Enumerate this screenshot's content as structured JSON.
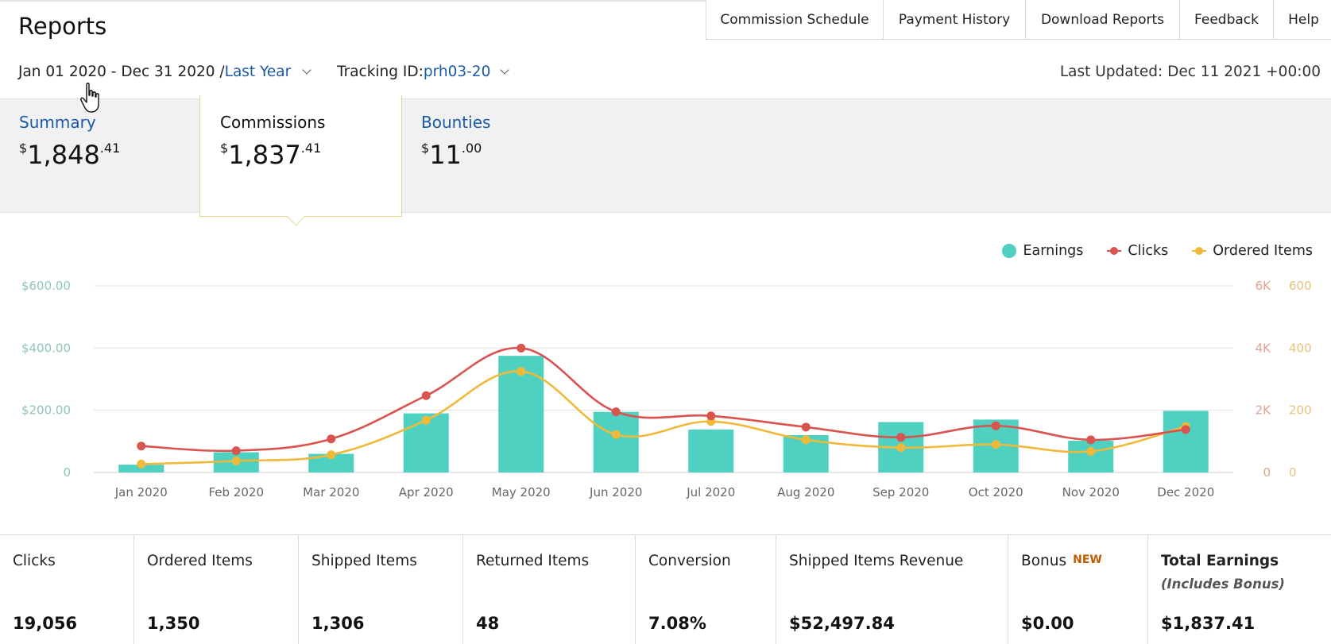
{
  "page": {
    "title": "Reports"
  },
  "top_nav": [
    {
      "id": "commission-schedule",
      "label": "Commission Schedule"
    },
    {
      "id": "payment-history",
      "label": "Payment History"
    },
    {
      "id": "download-reports",
      "label": "Download Reports"
    },
    {
      "id": "feedback",
      "label": "Feedback"
    },
    {
      "id": "help",
      "label": "Help"
    }
  ],
  "filters": {
    "date_range": "Jan 01 2020 - Dec 31 2020 / ",
    "period_link": "Last Year",
    "tracking_label": "Tracking ID: ",
    "tracking_value": "prh03-20",
    "last_updated": "Last Updated: Dec 11 2021 +00:00"
  },
  "summary_tabs": [
    {
      "label": "Summary",
      "currency": "$",
      "whole": "1,848",
      "cents": ".41"
    },
    {
      "label": "Commissions",
      "currency": "$",
      "whole": "1,837",
      "cents": ".41"
    },
    {
      "label": "Bounties",
      "currency": "$",
      "whole": "11",
      "cents": ".00"
    }
  ],
  "legend": {
    "earnings": "Earnings",
    "clicks": "Clicks",
    "ordered": "Ordered Items"
  },
  "colors": {
    "earnings": "#4fd1c1",
    "clicks": "#d9534f",
    "ordered": "#f0b93a",
    "link": "#1a5aa8",
    "new_badge": "#c25a00"
  },
  "chart_data": {
    "type": "bar",
    "categories": [
      "Jan 2020",
      "Feb 2020",
      "Mar 2020",
      "Apr 2020",
      "May 2020",
      "Jun 2020",
      "Jul 2020",
      "Aug 2020",
      "Sep 2020",
      "Oct 2020",
      "Nov 2020",
      "Dec 2020"
    ],
    "series": [
      {
        "name": "Earnings",
        "axis": "left",
        "values": [
          25,
          65,
          60,
          190,
          375,
          195,
          138,
          120,
          162,
          170,
          102,
          198
        ]
      },
      {
        "name": "Clicks",
        "axis": "right_clicks",
        "values": [
          850,
          700,
          1080,
          2470,
          4000,
          1950,
          1820,
          1460,
          1130,
          1500,
          1050,
          1380
        ]
      },
      {
        "name": "Ordered Items",
        "axis": "right_items",
        "values": [
          27,
          37,
          57,
          168,
          325,
          122,
          164,
          105,
          80,
          90,
          68,
          148
        ]
      }
    ],
    "left_axis": {
      "ticks": [
        "0",
        "$200.00",
        "$400.00",
        "$600.00"
      ],
      "ylim": [
        0,
        600
      ]
    },
    "right_axis_clicks": {
      "ticks": [
        "0",
        "2K",
        "4K",
        "6K"
      ],
      "ylim": [
        0,
        6000
      ]
    },
    "right_axis_items": {
      "ticks": [
        "0",
        "200",
        "400",
        "600"
      ],
      "ylim": [
        0,
        600
      ]
    },
    "grid": true,
    "legend_position": "top-right"
  },
  "stats": [
    {
      "label": "Clicks",
      "value": "19,056"
    },
    {
      "label": "Ordered Items",
      "value": "1,350"
    },
    {
      "label": "Shipped Items",
      "value": "1,306"
    },
    {
      "label": "Returned Items",
      "value": "48"
    },
    {
      "label": "Conversion",
      "value": "7.08%"
    },
    {
      "label": "Shipped Items Revenue",
      "value": "$52,497.84"
    },
    {
      "label": "Bonus",
      "badge": "NEW",
      "value": "$0.00"
    },
    {
      "label": "Total Earnings",
      "sublabel": "(Includes Bonus)",
      "value": "$1,837.41"
    }
  ]
}
